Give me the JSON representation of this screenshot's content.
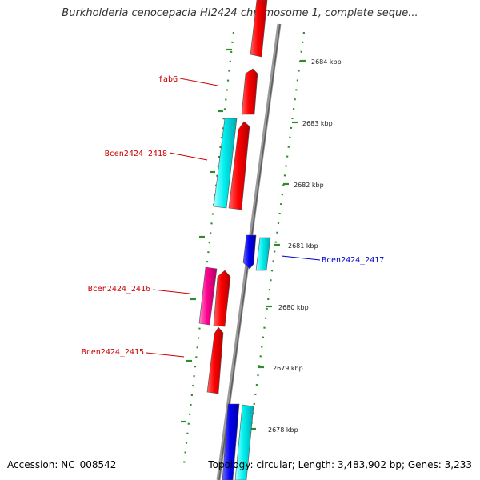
{
  "title": "Burkholderia cenocepacia HI2424 chromosome 1, complete seque...",
  "footer": {
    "accession": "Accession: NC_008542",
    "topology": "Topology: circular; Length: 3,483,902 bp; Genes: 3,233"
  },
  "ticks": [
    "2684 kbp",
    "2683 kbp",
    "2682 kbp",
    "2681 kbp",
    "2680 kbp",
    "2679 kbp",
    "2678 kbp"
  ],
  "gene_labels": [
    "fabG",
    "Bcen2424_2418",
    "Bcen2424_2416",
    "Bcen2424_2415",
    "Bcen2424_2417"
  ],
  "colors": {
    "backbone": "#8a8a8a",
    "cds_red": "#ee0000",
    "cds_cyan": "#00e5ee",
    "cds_blue": "#0000ee",
    "cds_magenta": "#ee0088",
    "tick_green": "#2e8b2e",
    "label_red": "#cc0000",
    "label_blue": "#0000cc"
  }
}
